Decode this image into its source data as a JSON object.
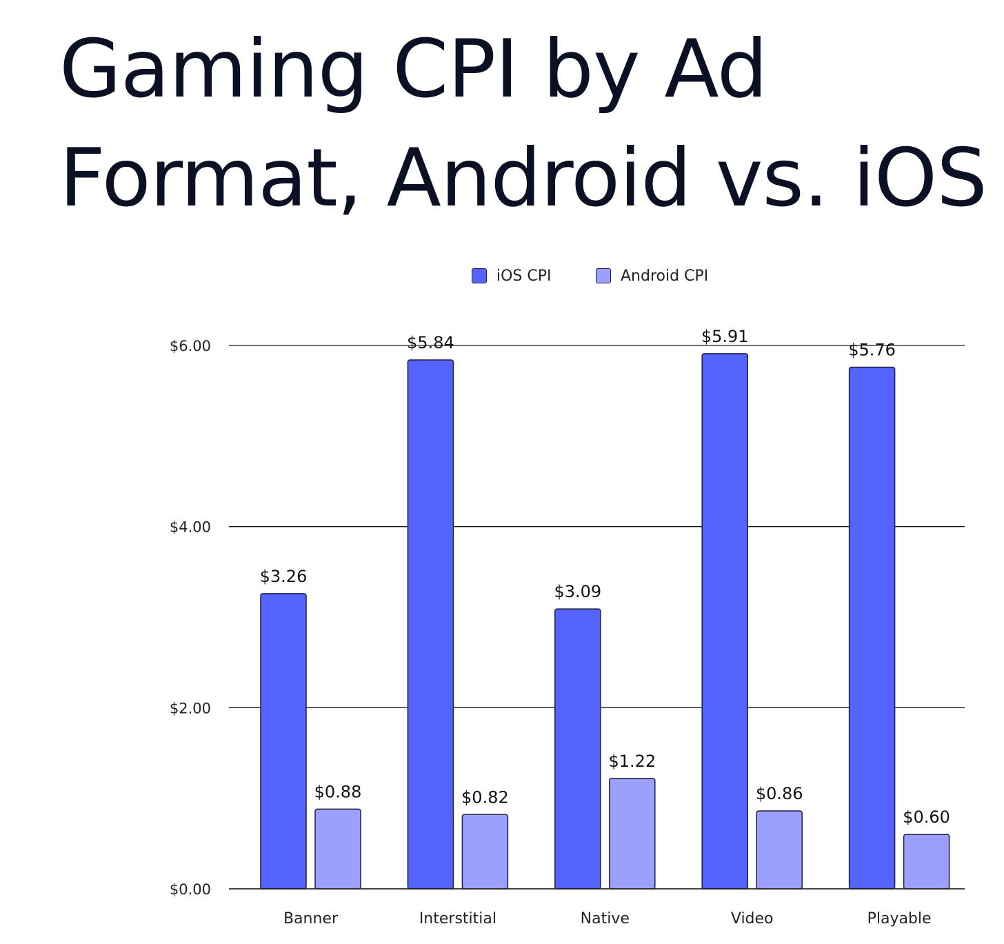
{
  "title_lines": [
    "Gaming CPI by Ad",
    "Format, Android vs. iOS"
  ],
  "chart_data": {
    "type": "bar",
    "title": "Gaming CPI by Ad Format, Android vs. iOS",
    "categories": [
      "Banner",
      "Interstitial",
      "Native",
      "Video",
      "Playable"
    ],
    "series": [
      {
        "name": "iOS CPI",
        "color": "#5563ff",
        "values": [
          3.26,
          5.84,
          3.09,
          5.91,
          5.76
        ],
        "labels": [
          "$3.26",
          "$5.84",
          "$3.09",
          "$5.91",
          "$5.76"
        ]
      },
      {
        "name": "Android CPI",
        "color": "#9ca0fd",
        "values": [
          0.88,
          0.82,
          1.22,
          0.86,
          0.6
        ],
        "labels": [
          "$0.88",
          "$0.82",
          "$1.22",
          "$0.86",
          "$0.60"
        ]
      }
    ],
    "ylim": [
      0,
      6
    ],
    "yticks": [
      0,
      2,
      4,
      6
    ],
    "ytick_labels": [
      "$0.00",
      "$2.00",
      "$4.00",
      "$6.00"
    ],
    "xlabel": "",
    "ylabel": "",
    "grid": true,
    "legend_position": "top-center"
  }
}
